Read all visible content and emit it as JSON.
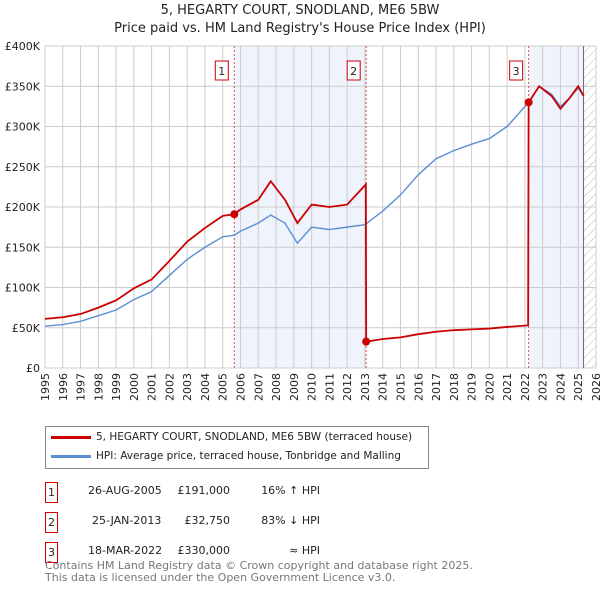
{
  "title": "5, HEGARTY COURT, SNODLAND, ME6 5BW",
  "subtitle": "Price paid vs. HM Land Registry's House Price Index (HPI)",
  "colors": {
    "property": "#cc0000",
    "hpi": "#5b8fd1",
    "shade": "#eef3fc",
    "grid": "#cccccc"
  },
  "chart_data": {
    "type": "line",
    "xlim": [
      1995,
      2026
    ],
    "ylim": [
      0,
      400000
    ],
    "x_ticks": [
      "1995",
      "1996",
      "1997",
      "1998",
      "1999",
      "2000",
      "2001",
      "2002",
      "2003",
      "2004",
      "2005",
      "2006",
      "2007",
      "2008",
      "2009",
      "2010",
      "2011",
      "2012",
      "2013",
      "2014",
      "2015",
      "2016",
      "2017",
      "2018",
      "2019",
      "2020",
      "2021",
      "2022",
      "2023",
      "2024",
      "2025",
      "2026"
    ],
    "y_ticks": [
      {
        "v": 0,
        "label": "£0"
      },
      {
        "v": 50000,
        "label": "£50K"
      },
      {
        "v": 100000,
        "label": "£100K"
      },
      {
        "v": 150000,
        "label": "£150K"
      },
      {
        "v": 200000,
        "label": "£200K"
      },
      {
        "v": 250000,
        "label": "£250K"
      },
      {
        "v": 300000,
        "label": "£300K"
      },
      {
        "v": 350000,
        "label": "£350K"
      },
      {
        "v": 400000,
        "label": "£400K"
      }
    ],
    "shaded_ranges": [
      [
        2005.65,
        2013.07
      ],
      [
        2022.21,
        2025.3
      ]
    ],
    "hatch_from": 2025.3,
    "markers": [
      {
        "label": "1",
        "x": 2005.65,
        "y": 191000
      },
      {
        "label": "2",
        "x": 2013.07,
        "y": 32750
      },
      {
        "label": "3",
        "x": 2022.21,
        "y": 330000
      }
    ],
    "series": [
      {
        "name": "HPI: Average price, terraced house, Tonbridge and Malling",
        "color": "#5b8fd1",
        "points": [
          [
            1995,
            52000
          ],
          [
            1996,
            54000
          ],
          [
            1997,
            58000
          ],
          [
            1998,
            65000
          ],
          [
            1999,
            72000
          ],
          [
            2000,
            85000
          ],
          [
            2001,
            95000
          ],
          [
            2002,
            115000
          ],
          [
            2003,
            135000
          ],
          [
            2004,
            150000
          ],
          [
            2005,
            163000
          ],
          [
            2005.65,
            165000
          ],
          [
            2006,
            170000
          ],
          [
            2007,
            180000
          ],
          [
            2007.7,
            190000
          ],
          [
            2008.5,
            180000
          ],
          [
            2009.2,
            155000
          ],
          [
            2010,
            175000
          ],
          [
            2011,
            172000
          ],
          [
            2012,
            175000
          ],
          [
            2013,
            178000
          ],
          [
            2014,
            195000
          ],
          [
            2015,
            215000
          ],
          [
            2016,
            240000
          ],
          [
            2017,
            260000
          ],
          [
            2018,
            270000
          ],
          [
            2019,
            278000
          ],
          [
            2020,
            285000
          ],
          [
            2021,
            300000
          ],
          [
            2022.21,
            330000
          ],
          [
            2022.8,
            350000
          ],
          [
            2023.5,
            340000
          ],
          [
            2024,
            325000
          ],
          [
            2024.5,
            335000
          ],
          [
            2025,
            348000
          ],
          [
            2025.3,
            338000
          ]
        ]
      },
      {
        "name": "5, HEGARTY COURT, SNODLAND, ME6 5BW (terraced house)",
        "color": "#cc0000",
        "points": [
          [
            1995,
            61000
          ],
          [
            1996,
            63000
          ],
          [
            1997,
            67000
          ],
          [
            1998,
            75000
          ],
          [
            1999,
            84000
          ],
          [
            2000,
            99000
          ],
          [
            2001,
            110000
          ],
          [
            2002,
            133000
          ],
          [
            2003,
            157000
          ],
          [
            2004,
            174000
          ],
          [
            2005,
            189000
          ],
          [
            2005.65,
            191000
          ],
          [
            2006,
            197000
          ],
          [
            2007,
            209000
          ],
          [
            2007.7,
            232000
          ],
          [
            2008.5,
            209000
          ],
          [
            2009.2,
            180000
          ],
          [
            2010,
            203000
          ],
          [
            2011,
            200000
          ],
          [
            2012,
            203000
          ],
          [
            2013.05,
            228000
          ],
          [
            2013.07,
            32750
          ],
          [
            2014,
            36000
          ],
          [
            2015,
            38000
          ],
          [
            2016,
            42000
          ],
          [
            2017,
            45000
          ],
          [
            2018,
            47000
          ],
          [
            2019,
            48000
          ],
          [
            2020,
            49000
          ],
          [
            2021,
            51000
          ],
          [
            2022.18,
            53000
          ],
          [
            2022.21,
            330000
          ],
          [
            2022.8,
            350000
          ],
          [
            2023.5,
            338000
          ],
          [
            2024,
            322000
          ],
          [
            2024.5,
            335000
          ],
          [
            2025,
            350000
          ],
          [
            2025.3,
            338000
          ]
        ]
      }
    ]
  },
  "legend": {
    "property": "5, HEGARTY COURT, SNODLAND, ME6 5BW (terraced house)",
    "hpi": "HPI: Average price, terraced house, Tonbridge and Malling"
  },
  "sales": [
    {
      "num": "1",
      "date": "26-AUG-2005",
      "price": "£191,000",
      "rel": "16% ↑ HPI"
    },
    {
      "num": "2",
      "date": "25-JAN-2013",
      "price": "£32,750",
      "rel": "83% ↓ HPI"
    },
    {
      "num": "3",
      "date": "18-MAR-2022",
      "price": "£330,000",
      "rel": "≈ HPI"
    }
  ],
  "footer": [
    "Contains HM Land Registry data © Crown copyright and database right 2025.",
    "This data is licensed under the Open Government Licence v3.0."
  ]
}
